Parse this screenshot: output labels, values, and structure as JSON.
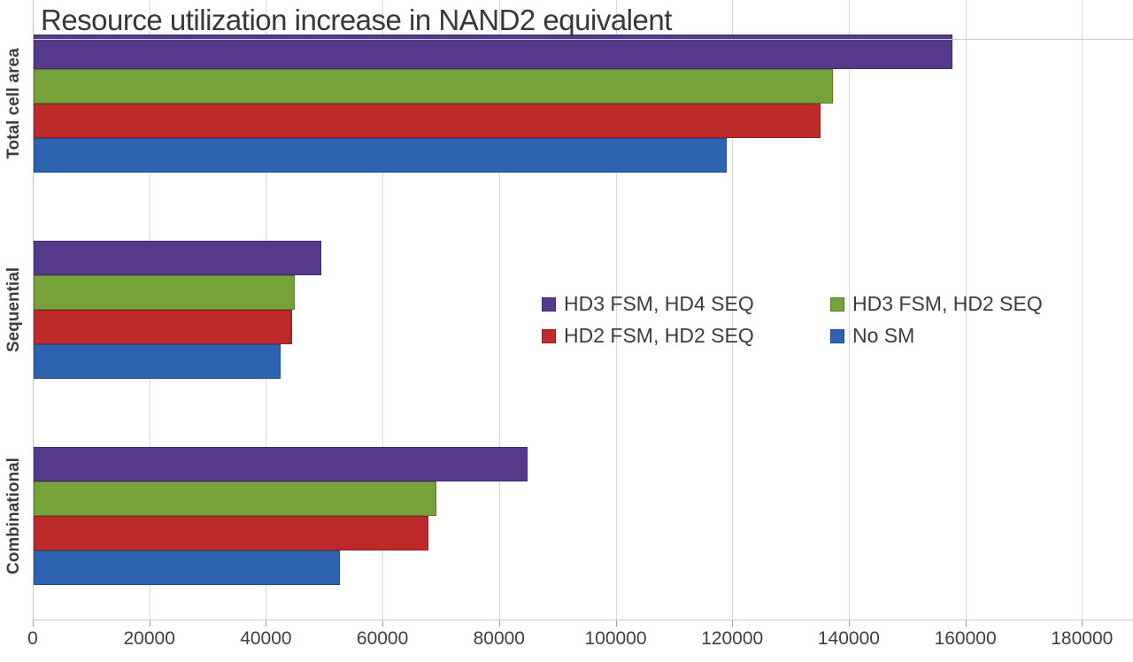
{
  "title": "Resource utilization increase in NAND2 equivalent",
  "chart_data": {
    "type": "bar",
    "orientation": "horizontal",
    "title": "Resource utilization increase in NAND2 equivalent",
    "categories": [
      "Total cell area",
      "Sequential",
      "Combinational"
    ],
    "series": [
      {
        "name": "HD3 FSM, HD4 SEQ",
        "color": "#55398b",
        "border_color": "#3f2a6e",
        "values": [
          157700,
          49300,
          84800
        ]
      },
      {
        "name": "HD3 FSM, HD2 SEQ",
        "color": "#76a23a",
        "border_color": "#587c2b",
        "values": [
          137100,
          44800,
          69100
        ]
      },
      {
        "name": "HD2 FSM, HD2 SEQ",
        "color": "#bd2a2c",
        "border_color": "#8e1f21",
        "values": [
          135000,
          44400,
          67700
        ]
      },
      {
        "name": "No SM",
        "color": "#2e63b0",
        "border_color": "#1f4c8f",
        "values": [
          118900,
          42400,
          52500
        ]
      }
    ],
    "xlim": [
      0,
      180000
    ],
    "x_tick_step": 20000,
    "x_tick_labels": [
      "0",
      "20000",
      "40000",
      "60000",
      "80000",
      "100000",
      "120000",
      "140000",
      "160000",
      "180000"
    ],
    "grid": true,
    "legend_position": "middle-right",
    "legend_layout": [
      [
        "HD3 FSM, HD4 SEQ",
        "HD3 FSM, HD2 SEQ"
      ],
      [
        "HD2 FSM, HD2 SEQ",
        "No SM"
      ]
    ]
  }
}
